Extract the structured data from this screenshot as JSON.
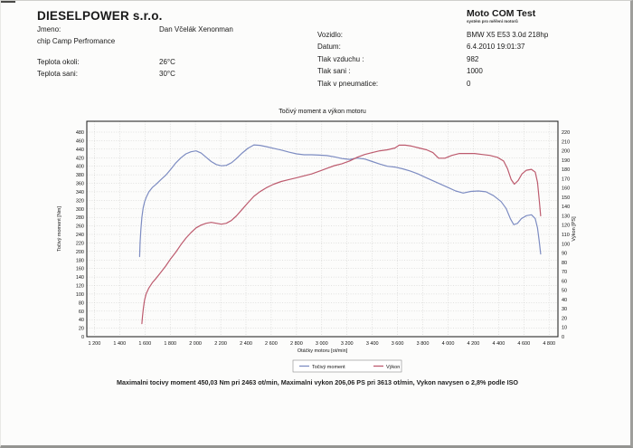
{
  "header": {
    "company": "DIESELPOWER s.r.o.",
    "product": {
      "name": "Moto COM Test",
      "tagline": "systém pro měření motorů"
    },
    "left_rows": [
      {
        "label": "Jmeno:",
        "value": "Dan Včelák Xenonman",
        "gap": false
      },
      {
        "label": "chip Camp Perfromance",
        "value": "",
        "gap": false
      },
      {
        "label": "Teplota okoli:",
        "value": "26°C",
        "gap": true
      },
      {
        "label": "Teplota sani:",
        "value": "30°C",
        "gap": false
      }
    ],
    "right_rows": [
      {
        "label": "Vozidlo:",
        "value": "BMW X5 E53 3.0d 218hp",
        "gap": false
      },
      {
        "label": "Datum:",
        "value": "6.4.2010 19:01:37",
        "gap": false
      },
      {
        "label": "Tlak vzduchu :",
        "value": "982",
        "gap": false
      },
      {
        "label": "Tlak sani :",
        "value": "1000",
        "gap": false
      },
      {
        "label": "Tlak v pneumatice:",
        "value": "0",
        "gap": false
      }
    ]
  },
  "chart_data": {
    "type": "line",
    "title": "Točivý moment a výkon motoru",
    "xlabel": "Otáčky motoru [ot/min]",
    "grid": "dotted",
    "legend_position": "bottom",
    "x_range": [
      1140,
      4870
    ],
    "x_ticks": [
      1200,
      1400,
      1600,
      1800,
      2000,
      2200,
      2400,
      2600,
      2800,
      3000,
      3200,
      3400,
      3600,
      3800,
      4000,
      4200,
      4400,
      4600,
      4800
    ],
    "x_tick_labels": [
      "1 200",
      "1 400",
      "1 600",
      "1 800",
      "2 000",
      "2 200",
      "2 400",
      "2 600",
      "2 800",
      "3 000",
      "3 200",
      "3 400",
      "3 600",
      "3 800",
      "4 000",
      "4 200",
      "4 400",
      "4 600",
      "4 800"
    ],
    "y_left": {
      "label": "Točivý moment [Nm]",
      "ticks": [
        0,
        20,
        40,
        60,
        80,
        100,
        120,
        140,
        160,
        180,
        200,
        220,
        240,
        260,
        280,
        300,
        320,
        340,
        360,
        380,
        400,
        420,
        440,
        460,
        480
      ],
      "range_max": 505.5
    },
    "y_right": {
      "label": "Výkon [PS]",
      "ticks": [
        0,
        10,
        20,
        30,
        40,
        50,
        60,
        70,
        80,
        90,
        100,
        110,
        120,
        130,
        140,
        150,
        160,
        170,
        180,
        190,
        200,
        210,
        220
      ],
      "range_max": 231.7
    },
    "series": [
      {
        "name": "Točivý moment",
        "axis": "left",
        "unit": "Nm",
        "color": "#7d8cc2",
        "points": [
          [
            1558,
            188
          ],
          [
            1562,
            220
          ],
          [
            1568,
            252
          ],
          [
            1576,
            280
          ],
          [
            1586,
            302
          ],
          [
            1598,
            317
          ],
          [
            1612,
            328
          ],
          [
            1632,
            340
          ],
          [
            1658,
            350
          ],
          [
            1690,
            358
          ],
          [
            1725,
            368
          ],
          [
            1765,
            379
          ],
          [
            1805,
            393
          ],
          [
            1845,
            408
          ],
          [
            1885,
            420
          ],
          [
            1925,
            429
          ],
          [
            1965,
            434
          ],
          [
            2005,
            436
          ],
          [
            2045,
            431
          ],
          [
            2085,
            421
          ],
          [
            2125,
            411
          ],
          [
            2165,
            404
          ],
          [
            2205,
            401
          ],
          [
            2245,
            402
          ],
          [
            2285,
            408
          ],
          [
            2325,
            418
          ],
          [
            2370,
            431
          ],
          [
            2415,
            442
          ],
          [
            2463,
            450
          ],
          [
            2510,
            449
          ],
          [
            2560,
            446
          ],
          [
            2620,
            442
          ],
          [
            2680,
            438
          ],
          [
            2740,
            433
          ],
          [
            2800,
            429
          ],
          [
            2860,
            427
          ],
          [
            2920,
            427
          ],
          [
            2980,
            426
          ],
          [
            3040,
            425
          ],
          [
            3100,
            422
          ],
          [
            3160,
            418
          ],
          [
            3220,
            416
          ],
          [
            3280,
            419
          ],
          [
            3340,
            417
          ],
          [
            3400,
            411
          ],
          [
            3460,
            405
          ],
          [
            3520,
            400
          ],
          [
            3580,
            398
          ],
          [
            3640,
            394
          ],
          [
            3700,
            389
          ],
          [
            3760,
            382
          ],
          [
            3820,
            374
          ],
          [
            3880,
            366
          ],
          [
            3940,
            358
          ],
          [
            4000,
            350
          ],
          [
            4060,
            342
          ],
          [
            4120,
            337
          ],
          [
            4180,
            341
          ],
          [
            4240,
            342
          ],
          [
            4300,
            340
          ],
          [
            4360,
            331
          ],
          [
            4420,
            317
          ],
          [
            4460,
            301
          ],
          [
            4495,
            276
          ],
          [
            4520,
            263
          ],
          [
            4550,
            266
          ],
          [
            4580,
            277
          ],
          [
            4620,
            284
          ],
          [
            4660,
            286
          ],
          [
            4690,
            277
          ],
          [
            4708,
            255
          ],
          [
            4722,
            224
          ],
          [
            4733,
            194
          ]
        ]
      },
      {
        "name": "Výkon",
        "axis": "right",
        "unit": "PS",
        "color": "#bd5b6e",
        "points": [
          [
            1576,
            14
          ],
          [
            1581,
            22
          ],
          [
            1588,
            31
          ],
          [
            1597,
            39
          ],
          [
            1610,
            46
          ],
          [
            1630,
            52
          ],
          [
            1658,
            58
          ],
          [
            1690,
            63
          ],
          [
            1725,
            69
          ],
          [
            1765,
            76
          ],
          [
            1805,
            84
          ],
          [
            1845,
            91
          ],
          [
            1885,
            99
          ],
          [
            1925,
            106
          ],
          [
            1965,
            112
          ],
          [
            2005,
            117
          ],
          [
            2045,
            120
          ],
          [
            2085,
            122
          ],
          [
            2125,
            123
          ],
          [
            2165,
            122
          ],
          [
            2205,
            121
          ],
          [
            2245,
            122
          ],
          [
            2285,
            125
          ],
          [
            2325,
            130
          ],
          [
            2370,
            137
          ],
          [
            2415,
            144
          ],
          [
            2463,
            151
          ],
          [
            2510,
            156
          ],
          [
            2560,
            160
          ],
          [
            2620,
            164
          ],
          [
            2680,
            167
          ],
          [
            2740,
            169
          ],
          [
            2800,
            171
          ],
          [
            2860,
            173
          ],
          [
            2920,
            175
          ],
          [
            2980,
            178
          ],
          [
            3040,
            181
          ],
          [
            3100,
            184
          ],
          [
            3160,
            186
          ],
          [
            3220,
            189
          ],
          [
            3280,
            193
          ],
          [
            3340,
            196
          ],
          [
            3400,
            198
          ],
          [
            3460,
            200
          ],
          [
            3520,
            201
          ],
          [
            3580,
            203
          ],
          [
            3613,
            206
          ],
          [
            3660,
            206
          ],
          [
            3710,
            205
          ],
          [
            3770,
            203
          ],
          [
            3830,
            201
          ],
          [
            3880,
            198
          ],
          [
            3925,
            192
          ],
          [
            3975,
            192
          ],
          [
            4030,
            195
          ],
          [
            4090,
            197
          ],
          [
            4150,
            197
          ],
          [
            4210,
            197
          ],
          [
            4270,
            196
          ],
          [
            4330,
            195
          ],
          [
            4390,
            193
          ],
          [
            4440,
            189
          ],
          [
            4470,
            181
          ],
          [
            4500,
            169
          ],
          [
            4525,
            164
          ],
          [
            4555,
            168
          ],
          [
            4585,
            175
          ],
          [
            4620,
            179
          ],
          [
            4660,
            180
          ],
          [
            4690,
            177
          ],
          [
            4708,
            166
          ],
          [
            4722,
            147
          ],
          [
            4733,
            130
          ]
        ]
      }
    ],
    "annotations": {
      "max_torque": "450,03 Nm pri 2463 ot/min",
      "max_power": "206,06 PS pri 3613 ot/min",
      "iso_correction": "2,8%"
    }
  },
  "footer": {
    "summary": "Maximalni tocivy moment 450,03 Nm pri 2463 ot/min, Maximalni vykon 206,06 PS pri 3613 ot/min, Vykon navysen o 2,8% podle ISO"
  }
}
